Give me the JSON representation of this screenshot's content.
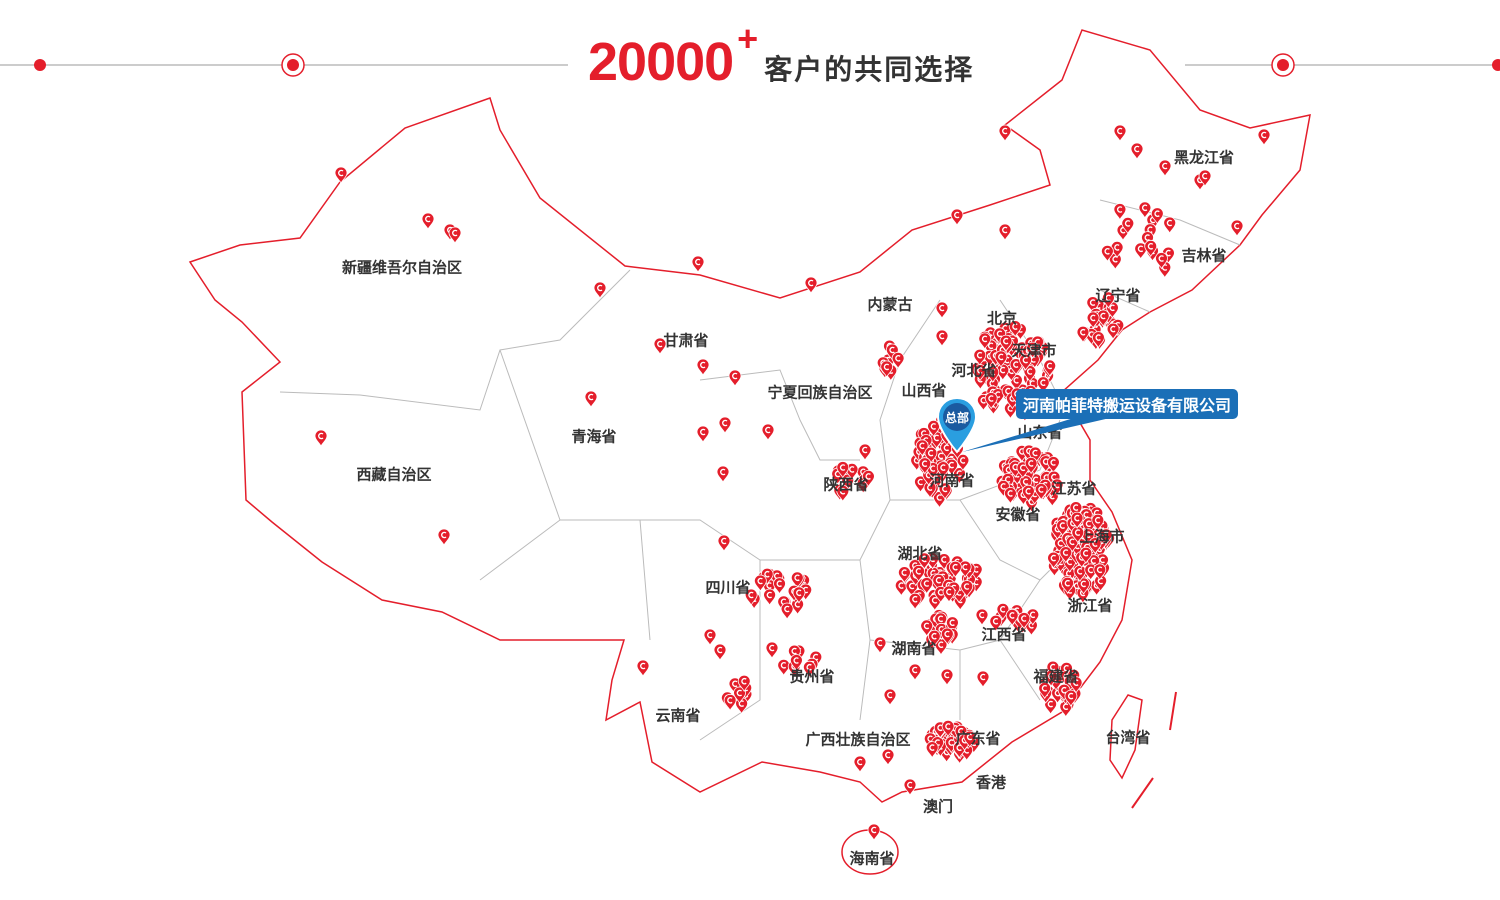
{
  "header": {
    "count": "20000",
    "plus": "+",
    "subtitle": "客户的共同选择"
  },
  "colors": {
    "accent": "#e41e2b",
    "border": "#e41e2b",
    "province_border": "#bbbbbb",
    "hq_blue": "#1b6fb7"
  },
  "headquarters": {
    "pin_label": "总部",
    "company": "河南帕菲特搬运设备有限公司"
  },
  "pin_icon": "map-marker-c-icon",
  "provinces": {
    "xinjiang": "新疆维吾尔自治区",
    "tibet": "西藏自治区",
    "qinghai": "青海省",
    "gansu": "甘肃省",
    "neimenggu": "内蒙古",
    "ningxia": "宁夏回族自治区",
    "shanxi": "山西省",
    "shaanxi": "陕西省",
    "beijing": "北京",
    "tianjin": "天津市",
    "hebei": "河北省",
    "shandong": "山东省",
    "henan": "河南省",
    "jiangsu": "江苏省",
    "anhui": "安徽省",
    "shanghai": "上海市",
    "hubei": "湖北省",
    "sichuan": "四川省",
    "zhejiang": "浙江省",
    "jiangxi": "江西省",
    "hunan": "湖南省",
    "guizhou": "贵州省",
    "fujian": "福建省",
    "yunnan": "云南省",
    "guangxi": "广西壮族自治区",
    "guangdong": "广东省",
    "taiwan": "台湾省",
    "hongkong": "香港",
    "macau": "澳门",
    "hainan": "海南省",
    "heilongjiang": "黑龙江省",
    "jilin": "吉林省",
    "liaoning": "辽宁省"
  }
}
